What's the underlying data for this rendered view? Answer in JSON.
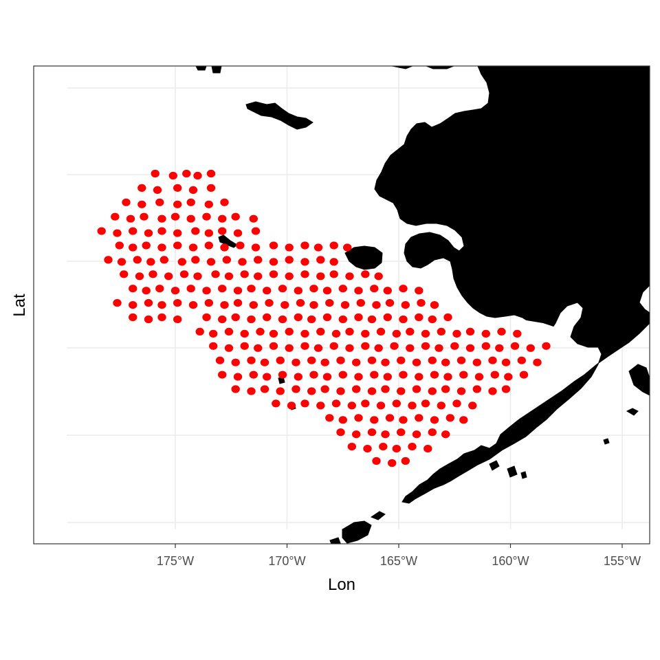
{
  "chart_data": {
    "type": "scatter",
    "title": "",
    "xlabel": "Lon",
    "ylabel": "Lat",
    "xlim": [
      -181.3,
      -153.9
    ],
    "x_ticks": [
      -175,
      -170,
      -165,
      -160,
      -155
    ],
    "x_tick_labels": [
      "175°W",
      "170°W",
      "165°W",
      "160°W",
      "155°W"
    ],
    "y_tick_labels": [],
    "grid": true,
    "legend": "none",
    "land_color": "#000000",
    "series": [
      {
        "color": "#ff0000",
        "note_rows_lon": "survey stations, rows of approximately regular spacing (lon in degrees, lat as relative row index from top)",
        "rows": [
          {
            "row": 0,
            "lon": [
              -175.9,
              -175.1,
              -174.5,
              -174.0,
              -173.4
            ]
          },
          {
            "row": 1,
            "lon": [
              -176.5,
              -175.8,
              -174.9,
              -174.2,
              -173.4
            ]
          },
          {
            "row": 2,
            "lon": [
              -177.2,
              -176.5,
              -175.7,
              -174.9,
              -174.3,
              -173.5,
              -172.8
            ]
          },
          {
            "row": 3,
            "lon": [
              -177.7,
              -177.0,
              -176.4,
              -175.6,
              -175.0,
              -174.3,
              -173.6,
              -172.9,
              -172.3,
              -171.5
            ]
          },
          {
            "row": 4,
            "lon": [
              -178.3,
              -177.6,
              -176.9,
              -176.2,
              -175.6,
              -174.9,
              -174.1,
              -173.5,
              -172.9,
              -172.2,
              -171.4
            ]
          },
          {
            "row": 5,
            "lon": [
              -177.5,
              -176.9,
              -176.3,
              -175.6,
              -174.9,
              -174.2,
              -173.5,
              -172.8,
              -172.1,
              -171.4,
              -170.6,
              -169.9,
              -169.2,
              -168.6,
              -167.9,
              -167.3
            ]
          },
          {
            "row": 6,
            "lon": [
              -178.0,
              -177.4,
              -176.7,
              -176.1,
              -175.5,
              -174.7,
              -174.1,
              -173.4,
              -172.7,
              -172.0,
              -171.3,
              -170.6,
              -169.9,
              -169.2,
              -168.5,
              -167.9
            ]
          },
          {
            "row": 7,
            "lon": [
              -177.3,
              -176.6,
              -176.0,
              -175.3,
              -174.6,
              -174.0,
              -173.2,
              -172.6,
              -171.9,
              -171.3,
              -170.6,
              -169.9,
              -169.2,
              -168.5,
              -167.9,
              -167.2,
              -166.5,
              -165.9
            ]
          },
          {
            "row": 8,
            "lon": [
              -176.9,
              -176.3,
              -175.7,
              -175.0,
              -174.3,
              -173.6,
              -172.9,
              -172.2,
              -171.6,
              -170.9,
              -170.2,
              -169.5,
              -168.8,
              -168.2,
              -167.5,
              -166.8,
              -166.1,
              -165.5,
              -164.8,
              -164.1
            ]
          },
          {
            "row": 9,
            "lon": [
              -177.6,
              -176.9,
              -176.2,
              -175.6,
              -174.9,
              -174.2,
              -173.5,
              -172.8,
              -172.2,
              -171.5,
              -170.8,
              -170.1,
              -169.4,
              -168.8,
              -168.1,
              -167.4,
              -166.7,
              -166.0,
              -165.4,
              -164.7,
              -164.0,
              -163.4
            ]
          },
          {
            "row": 10,
            "lon": [
              -176.9,
              -176.2,
              -175.6,
              -174.9,
              -173.6,
              -172.9,
              -172.3,
              -171.6,
              -170.9,
              -170.2,
              -169.5,
              -168.9,
              -168.2,
              -167.5,
              -166.8,
              -166.2,
              -165.5,
              -164.8,
              -164.1,
              -163.5,
              -162.8
            ]
          },
          {
            "row": 11,
            "lon": [
              -173.9,
              -173.3,
              -172.6,
              -171.9,
              -171.2,
              -170.6,
              -169.9,
              -169.2,
              -168.5,
              -167.8,
              -167.2,
              -166.5,
              -165.8,
              -165.1,
              -164.5,
              -163.8,
              -163.1,
              -162.4,
              -161.8,
              -161.1,
              -160.4,
              -159.7
            ]
          },
          {
            "row": 12,
            "lon": [
              -173.3,
              -172.6,
              -171.9,
              -171.3,
              -170.6,
              -169.9,
              -169.2,
              -168.6,
              -167.9,
              -167.2,
              -166.5,
              -165.9,
              -165.2,
              -164.5,
              -163.8,
              -163.2,
              -162.5,
              -161.8,
              -161.1,
              -160.5,
              -159.8,
              -159.1,
              -158.4
            ]
          },
          {
            "row": 13,
            "lon": [
              -173.0,
              -172.3,
              -171.6,
              -171.0,
              -170.3,
              -169.6,
              -168.9,
              -168.3,
              -167.6,
              -166.9,
              -166.2,
              -165.6,
              -164.9,
              -164.2,
              -163.5,
              -162.9,
              -162.2,
              -161.5,
              -160.8,
              -160.2,
              -159.5,
              -158.8
            ]
          },
          {
            "row": 14,
            "lon": [
              -172.9,
              -172.2,
              -171.5,
              -170.9,
              -170.2,
              -169.5,
              -168.8,
              -168.2,
              -167.5,
              -166.8,
              -166.1,
              -165.5,
              -164.8,
              -164.1,
              -163.4,
              -162.8,
              -162.1,
              -161.4,
              -160.7,
              -160.1,
              -159.4
            ]
          },
          {
            "row": 15,
            "lon": [
              -172.3,
              -171.6,
              -171.0,
              -170.3,
              -169.6,
              -168.9,
              -168.3,
              -167.6,
              -166.9,
              -166.2,
              -165.6,
              -164.9,
              -164.2,
              -163.5,
              -162.9,
              -162.2,
              -161.5,
              -160.8,
              -160.2
            ]
          },
          {
            "row": 16,
            "lon": [
              -170.5,
              -169.8,
              -169.2,
              -168.5,
              -167.8,
              -167.1,
              -166.5,
              -165.8,
              -165.1,
              -164.4,
              -163.8,
              -163.1,
              -162.4,
              -161.7
            ]
          },
          {
            "row": 17,
            "lon": [
              -168.1,
              -167.5,
              -166.8,
              -166.1,
              -165.4,
              -164.8,
              -164.1,
              -163.4,
              -162.7,
              -162.1
            ]
          },
          {
            "row": 18,
            "lon": [
              -167.6,
              -166.9,
              -166.2,
              -165.6,
              -164.9,
              -164.2,
              -163.5,
              -162.9
            ]
          },
          {
            "row": 19,
            "lon": [
              -167.1,
              -166.4,
              -165.7,
              -165.1,
              -164.4,
              -163.7
            ]
          },
          {
            "row": 20,
            "lon": [
              -166.0,
              -165.3,
              -164.7
            ]
          }
        ]
      }
    ]
  }
}
